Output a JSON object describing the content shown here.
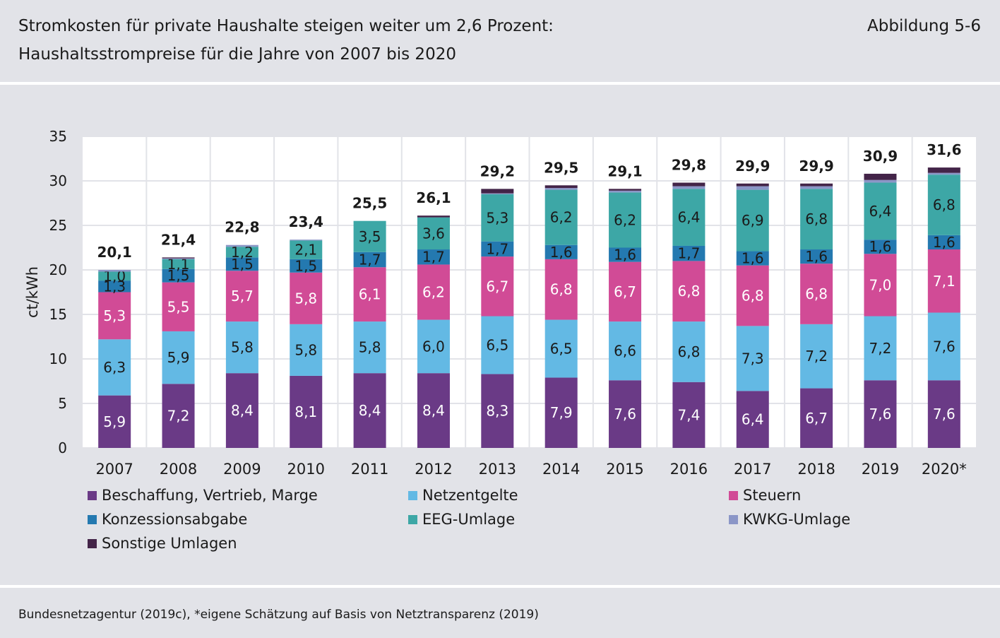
{
  "header": {
    "title_line1": "Stromkosten für private Haushalte steigen weiter um 2,6 Prozent:",
    "title_line2": "Haushaltsstrompreise für die Jahre von 2007 bis 2020",
    "figure_label": "Abbildung 5-6"
  },
  "source": "Bundesnetzagentur (2019c), *eigene Schätzung auf Basis von Netztransparenz (2019)",
  "colors": {
    "background": "#e2e3e8",
    "plot": "#ffffff",
    "Beschaffung": "#6a3a86",
    "Netzentgelte": "#63b9e4",
    "Steuern": "#d14b96",
    "Konzession": "#2479b0",
    "EEG": "#3da7a6",
    "KWKG": "#8b96c7",
    "Sonstige": "#432448"
  },
  "chart_data": {
    "type": "bar",
    "stacked": true,
    "ylabel": "ct/kWh",
    "ylim": [
      0,
      35
    ],
    "yticks": [
      0,
      5,
      10,
      15,
      20,
      25,
      30,
      35
    ],
    "grid": true,
    "legend_position": "bottom",
    "categories": [
      "2007",
      "2008",
      "2009",
      "2010",
      "2011",
      "2012",
      "2013",
      "2014",
      "2015",
      "2016",
      "2017",
      "2018",
      "2019",
      "2020*"
    ],
    "totals": [
      "20,1",
      "21,4",
      "22,8",
      "23,4",
      "25,5",
      "26,1",
      "29,2",
      "29,5",
      "29,1",
      "29,8",
      "29,9",
      "29,9",
      "30,9",
      "31,6"
    ],
    "series": [
      {
        "name": "Beschaffung, Vertrieb, Marge",
        "color_key": "Beschaffung",
        "label_color": "#ffffff",
        "values": [
          5.9,
          7.2,
          8.4,
          8.1,
          8.4,
          8.4,
          8.3,
          7.9,
          7.6,
          7.4,
          6.4,
          6.7,
          7.6,
          7.6
        ],
        "labels": [
          "5,9",
          "7,2",
          "8,4",
          "8,1",
          "8,4",
          "8,4",
          "8,3",
          "7,9",
          "7,6",
          "7,4",
          "6,4",
          "6,7",
          "7,6",
          "7,6"
        ]
      },
      {
        "name": "Netzentgelte",
        "color_key": "Netzentgelte",
        "label_color": "#1a1a1a",
        "values": [
          6.3,
          5.9,
          5.8,
          5.8,
          5.8,
          6.0,
          6.5,
          6.5,
          6.6,
          6.8,
          7.3,
          7.2,
          7.2,
          7.6
        ],
        "labels": [
          "6,3",
          "5,9",
          "5,8",
          "5,8",
          "5,8",
          "6,0",
          "6,5",
          "6,5",
          "6,6",
          "6,8",
          "7,3",
          "7,2",
          "7,2",
          "7,6"
        ]
      },
      {
        "name": "Steuern",
        "color_key": "Steuern",
        "label_color": "#ffffff",
        "values": [
          5.3,
          5.5,
          5.7,
          5.8,
          6.1,
          6.2,
          6.7,
          6.8,
          6.7,
          6.8,
          6.8,
          6.8,
          7.0,
          7.1
        ],
        "labels": [
          "5,3",
          "5,5",
          "5,7",
          "5,8",
          "6,1",
          "6,2",
          "6,7",
          "6,8",
          "6,7",
          "6,8",
          "6,8",
          "6,8",
          "7,0",
          "7,1"
        ]
      },
      {
        "name": "Konzessionsabgabe",
        "color_key": "Konzession",
        "label_color": "#1a1a1a",
        "values": [
          1.3,
          1.5,
          1.5,
          1.5,
          1.7,
          1.7,
          1.7,
          1.6,
          1.6,
          1.7,
          1.6,
          1.6,
          1.6,
          1.6
        ],
        "labels": [
          "1,3",
          "1,5",
          "1,5",
          "1,5",
          "1,7",
          "1,7",
          "1,7",
          "1,6",
          "1,6",
          "1,7",
          "1,6",
          "1,6",
          "1,6",
          "1,6"
        ]
      },
      {
        "name": "EEG-Umlage",
        "color_key": "EEG",
        "label_color": "#1a1a1a",
        "values": [
          1.0,
          1.1,
          1.2,
          2.1,
          3.5,
          3.6,
          5.3,
          6.2,
          6.2,
          6.4,
          6.9,
          6.8,
          6.4,
          6.8
        ],
        "labels": [
          "1,0",
          "1,1",
          "1,2",
          "2,1",
          "3,5",
          "3,6",
          "5,3",
          "6,2",
          "6,2",
          "6,4",
          "6,9",
          "6,8",
          "6,4",
          "6,8"
        ]
      },
      {
        "name": "KWKG-Umlage",
        "color_key": "KWKG",
        "label_color": "",
        "values": [
          0.2,
          0.1,
          0.2,
          0.1,
          0.0,
          0.0,
          0.1,
          0.2,
          0.2,
          0.3,
          0.4,
          0.3,
          0.3,
          0.2
        ],
        "labels": []
      },
      {
        "name": "Sonstige Umlagen",
        "color_key": "Sonstige",
        "label_color": "",
        "values": [
          0.0,
          0.1,
          0.0,
          0.0,
          0.0,
          0.2,
          0.5,
          0.3,
          0.2,
          0.4,
          0.3,
          0.3,
          0.7,
          0.6
        ],
        "labels": []
      }
    ]
  },
  "legend": [
    {
      "label": "Beschaffung, Vertrieb, Marge",
      "color_key": "Beschaffung"
    },
    {
      "label": "Netzentgelte",
      "color_key": "Netzentgelte"
    },
    {
      "label": "Steuern",
      "color_key": "Steuern"
    },
    {
      "label": "Konzessionsabgabe",
      "color_key": "Konzession"
    },
    {
      "label": "EEG-Umlage",
      "color_key": "EEG"
    },
    {
      "label": "KWKG-Umlage",
      "color_key": "KWKG"
    },
    {
      "label": "Sonstige Umlagen",
      "color_key": "Sonstige"
    }
  ]
}
